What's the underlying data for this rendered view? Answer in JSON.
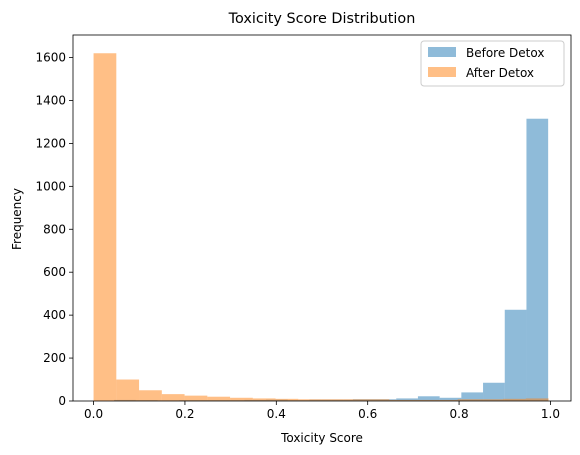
{
  "chart_data": {
    "type": "bar",
    "title": "Toxicity Score Distribution",
    "xlabel": "Toxicity Score",
    "ylabel": "Frequency",
    "xlim": [
      -0.045,
      1.045
    ],
    "ylim": [
      0,
      1705
    ],
    "xticks": [
      0.0,
      0.2,
      0.4,
      0.6,
      0.8,
      1.0
    ],
    "xtick_labels": [
      "0.0",
      "0.2",
      "0.4",
      "0.6",
      "0.8",
      "1.0"
    ],
    "yticks": [
      0,
      200,
      400,
      600,
      800,
      1000,
      1200,
      1400,
      1600
    ],
    "legend_position": "top-right",
    "series": [
      {
        "name": "Before Detox",
        "color": "#1f77b4",
        "opacity": 0.5,
        "bin_edges": [
          0.045,
          0.0925,
          0.14,
          0.1875,
          0.235,
          0.2825,
          0.33,
          0.3775,
          0.425,
          0.4725,
          0.52,
          0.5675,
          0.615,
          0.6625,
          0.71,
          0.7575,
          0.805,
          0.8525,
          0.9,
          0.9475,
          0.995
        ],
        "values": [
          5,
          4,
          3,
          4,
          4,
          4,
          5,
          6,
          4,
          6,
          6,
          8,
          8,
          12,
          22,
          15,
          40,
          85,
          425,
          1315
        ]
      },
      {
        "name": "After Detox",
        "color": "#ff7f0e",
        "opacity": 0.5,
        "bin_edges": [
          0.0,
          0.0498,
          0.0996,
          0.1494,
          0.1992,
          0.249,
          0.2988,
          0.3486,
          0.3984,
          0.4482,
          0.498,
          0.5478,
          0.5976,
          0.6474,
          0.6972,
          0.747,
          0.7968,
          0.8466,
          0.8964,
          0.9462,
          0.996
        ],
        "values": [
          1620,
          100,
          50,
          32,
          25,
          20,
          15,
          12,
          10,
          8,
          8,
          8,
          8,
          5,
          5,
          5,
          8,
          8,
          10,
          12
        ]
      }
    ]
  }
}
